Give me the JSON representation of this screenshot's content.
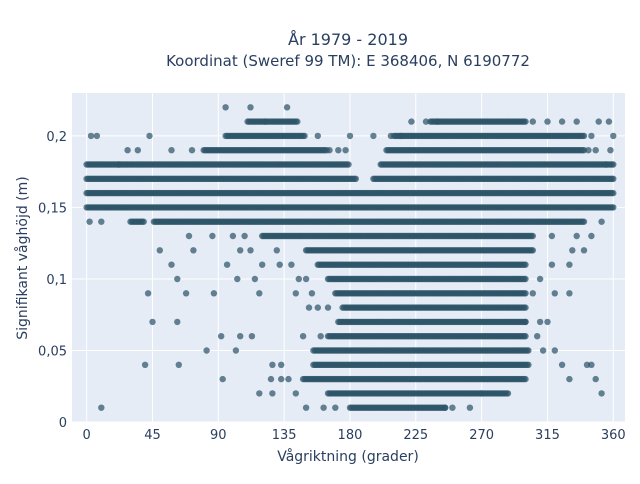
{
  "chart_data": {
    "type": "scatter",
    "title": "År 1979 - 2019",
    "subtitle": "Koordinat (Sweref 99 TM): E 368406, N 6190772",
    "xlabel": "Vågriktning (grader)",
    "ylabel": "Signifikant våghöjd (m)",
    "xlim": [
      -10,
      368
    ],
    "ylim": [
      0,
      0.23
    ],
    "x_ticks": [
      0,
      45,
      90,
      135,
      180,
      225,
      270,
      315,
      360
    ],
    "x_tick_labels": [
      "0",
      "45",
      "90",
      "135",
      "180",
      "225",
      "270",
      "315",
      "360"
    ],
    "y_ticks": [
      0,
      0.05,
      0.1,
      0.15,
      0.2
    ],
    "y_tick_labels": [
      "0",
      "0,05",
      "0,1",
      "0,15",
      "0,2"
    ],
    "grid": true,
    "legend": "none",
    "colors": {
      "marker": "#2e5468",
      "plot_bg": "#e5ecf6",
      "grid": "#ffffff",
      "text": "#2a3f5f"
    },
    "series": [
      {
        "bands": [
          {
            "y": 0.01,
            "x_from": 180,
            "x_to": 245
          },
          {
            "y": 0.02,
            "x_from": 165,
            "x_to": 288
          },
          {
            "y": 0.03,
            "x_from": 148,
            "x_to": 300
          },
          {
            "y": 0.04,
            "x_from": 155,
            "x_to": 302
          },
          {
            "y": 0.05,
            "x_from": 155,
            "x_to": 302
          },
          {
            "y": 0.06,
            "x_from": 165,
            "x_to": 300
          },
          {
            "y": 0.07,
            "x_from": 172,
            "x_to": 300
          },
          {
            "y": 0.08,
            "x_from": 175,
            "x_to": 300
          },
          {
            "y": 0.09,
            "x_from": 170,
            "x_to": 300
          },
          {
            "y": 0.1,
            "x_from": 165,
            "x_to": 300
          },
          {
            "y": 0.11,
            "x_from": 158,
            "x_to": 300
          },
          {
            "y": 0.12,
            "x_from": 150,
            "x_to": 305
          },
          {
            "y": 0.13,
            "x_from": 120,
            "x_to": 305
          },
          {
            "y": 0.14,
            "x_from": 30,
            "x_to": 340
          },
          {
            "y": 0.15,
            "x_from": 0,
            "x_to": 360
          },
          {
            "y": 0.16,
            "x_from": 0,
            "x_to": 360
          },
          {
            "y": 0.17,
            "x_from": 0,
            "x_to": 360
          },
          {
            "y": 0.18,
            "x_from": 0,
            "x_to": 360
          },
          {
            "y": 0.19,
            "x_from": 80,
            "x_to": 340
          },
          {
            "y": 0.2,
            "x_from": 95,
            "x_to": 340
          },
          {
            "y": 0.21,
            "x_from": 110,
            "x_to": 300
          }
        ],
        "gaps": [
          {
            "y": 0.14,
            "x_from": 40,
            "x_to": 45
          },
          {
            "y": 0.17,
            "x_from": 185,
            "x_to": 195
          },
          {
            "y": 0.18,
            "x_from": 180,
            "x_to": 200
          },
          {
            "y": 0.19,
            "x_from": 165,
            "x_to": 205
          },
          {
            "y": 0.2,
            "x_from": 150,
            "x_to": 210
          },
          {
            "y": 0.21,
            "x_from": 145,
            "x_to": 235
          }
        ],
        "points": [
          [
            3,
            0.2
          ],
          [
            7,
            0.2
          ],
          [
            43,
            0.2
          ],
          [
            10,
            0.01
          ],
          [
            2,
            0.14
          ],
          [
            10,
            0.14
          ],
          [
            22,
            0.18
          ],
          [
            28,
            0.19
          ],
          [
            35,
            0.19
          ],
          [
            58,
            0.19
          ],
          [
            72,
            0.19
          ],
          [
            95,
            0.22
          ],
          [
            112,
            0.22
          ],
          [
            137,
            0.22
          ],
          [
            122,
            0.21
          ],
          [
            196,
            0.2
          ],
          [
            180,
            0.2
          ],
          [
            208,
            0.2
          ],
          [
            70,
            0.13
          ],
          [
            86,
            0.13
          ],
          [
            100,
            0.13
          ],
          [
            108,
            0.13
          ],
          [
            50,
            0.12
          ],
          [
            73,
            0.12
          ],
          [
            105,
            0.12
          ],
          [
            112,
            0.12
          ],
          [
            130,
            0.12
          ],
          [
            58,
            0.11
          ],
          [
            96,
            0.11
          ],
          [
            120,
            0.11
          ],
          [
            132,
            0.11
          ],
          [
            140,
            0.11
          ],
          [
            62,
            0.1
          ],
          [
            103,
            0.1
          ],
          [
            115,
            0.1
          ],
          [
            145,
            0.1
          ],
          [
            150,
            0.1
          ],
          [
            42,
            0.09
          ],
          [
            68,
            0.09
          ],
          [
            87,
            0.09
          ],
          [
            118,
            0.09
          ],
          [
            143,
            0.09
          ],
          [
            154,
            0.09
          ],
          [
            45,
            0.07
          ],
          [
            62,
            0.07
          ],
          [
            152,
            0.08
          ],
          [
            158,
            0.08
          ],
          [
            165,
            0.08
          ],
          [
            92,
            0.06
          ],
          [
            105,
            0.06
          ],
          [
            113,
            0.06
          ],
          [
            148,
            0.06
          ],
          [
            160,
            0.06
          ],
          [
            40,
            0.04
          ],
          [
            63,
            0.04
          ],
          [
            82,
            0.05
          ],
          [
            102,
            0.05
          ],
          [
            127,
            0.04
          ],
          [
            133,
            0.04
          ],
          [
            93,
            0.03
          ],
          [
            126,
            0.03
          ],
          [
            133,
            0.03
          ],
          [
            138,
            0.03
          ],
          [
            118,
            0.02
          ],
          [
            127,
            0.02
          ],
          [
            143,
            0.02
          ],
          [
            150,
            0.01
          ],
          [
            162,
            0.01
          ],
          [
            170,
            0.01
          ],
          [
            245,
            0.01
          ],
          [
            250,
            0.01
          ],
          [
            262,
            0.01
          ],
          [
            270,
            0.02
          ],
          [
            308,
            0.06
          ],
          [
            312,
            0.05
          ],
          [
            320,
            0.05
          ],
          [
            300,
            0.07
          ],
          [
            310,
            0.07
          ],
          [
            315,
            0.07
          ],
          [
            305,
            0.09
          ],
          [
            320,
            0.09
          ],
          [
            330,
            0.09
          ],
          [
            310,
            0.1
          ],
          [
            318,
            0.11
          ],
          [
            330,
            0.11
          ],
          [
            332,
            0.12
          ],
          [
            340,
            0.12
          ],
          [
            318,
            0.13
          ],
          [
            335,
            0.13
          ],
          [
            345,
            0.13
          ],
          [
            352,
            0.14
          ],
          [
            325,
            0.04
          ],
          [
            330,
            0.03
          ],
          [
            345,
            0.04
          ],
          [
            342,
            0.04
          ],
          [
            348,
            0.03
          ],
          [
            352,
            0.02
          ],
          [
            355,
            0.18
          ],
          [
            358,
            0.19
          ],
          [
            360,
            0.2
          ],
          [
            357,
            0.21
          ],
          [
            350,
            0.21
          ],
          [
            345,
            0.2
          ],
          [
            335,
            0.21
          ],
          [
            325,
            0.21
          ],
          [
            315,
            0.21
          ],
          [
            305,
            0.21
          ],
          [
            343,
            0.19
          ],
          [
            348,
            0.19
          ],
          [
            235,
            0.21
          ],
          [
            240,
            0.21
          ],
          [
            232,
            0.21
          ],
          [
            222,
            0.21
          ],
          [
            215,
            0.2
          ],
          [
            210,
            0.2
          ],
          [
            158,
            0.2
          ],
          [
            166,
            0.19
          ],
          [
            172,
            0.19
          ],
          [
            177,
            0.19
          ],
          [
            205,
            0.19
          ]
        ]
      }
    ]
  }
}
